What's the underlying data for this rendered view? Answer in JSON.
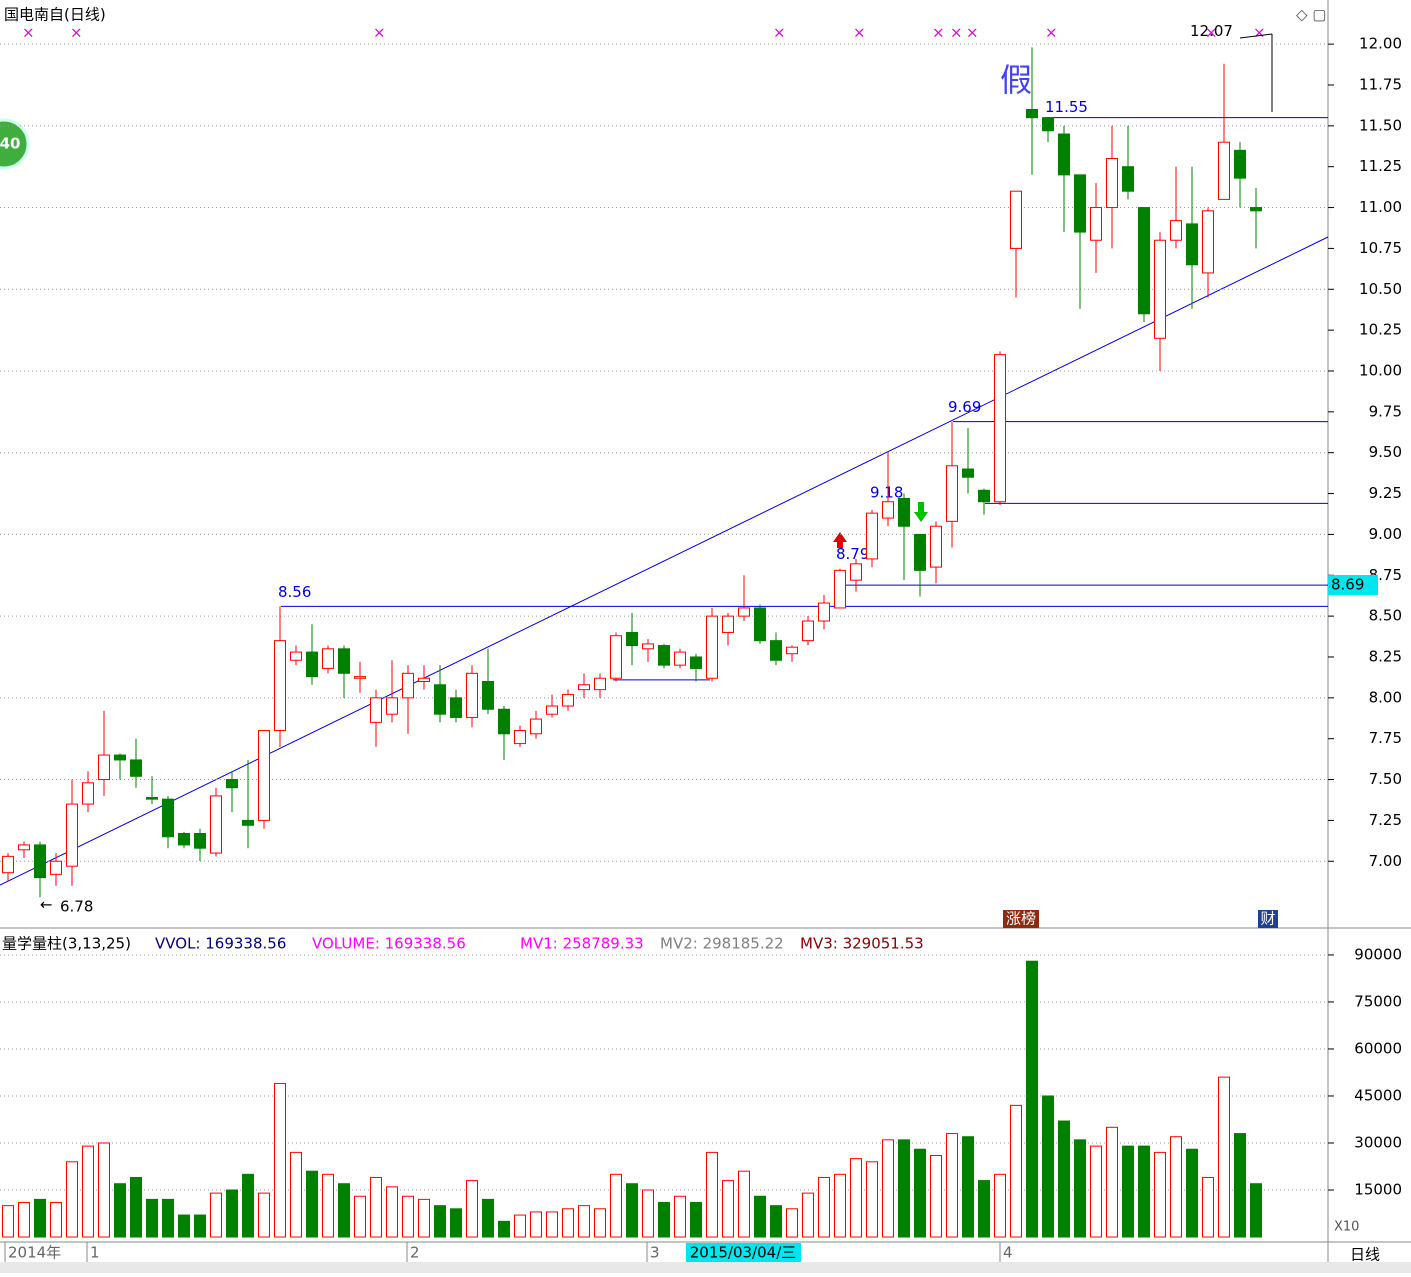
{
  "chart_data": {
    "type": "candlestick",
    "title": "国电南自(日线)",
    "open": [
      6.93,
      7.07,
      7.1,
      6.92,
      6.97,
      7.35,
      7.5,
      7.65,
      7.62,
      7.39,
      7.38,
      7.17,
      7.17,
      7.05,
      7.5,
      7.25,
      7.25,
      7.8,
      8.23,
      8.28,
      8.18,
      8.3,
      8.12,
      7.85,
      7.9,
      8.0,
      8.1,
      8.08,
      8.0,
      7.88,
      8.1,
      7.93,
      7.72,
      7.78,
      7.9,
      7.95,
      8.05,
      8.05,
      8.12,
      8.4,
      8.3,
      8.32,
      8.2,
      8.25,
      8.12,
      8.4,
      8.5,
      8.55,
      8.35,
      8.27,
      8.35,
      8.47,
      8.55,
      8.72,
      8.85,
      9.1,
      9.22,
      9.0,
      8.8,
      9.08,
      9.4,
      9.27,
      9.2,
      10.75,
      11.6,
      11.55,
      11.45,
      11.2,
      10.8,
      11.0,
      11.25,
      11.0,
      10.2,
      10.8,
      10.9,
      10.6,
      11.05,
      11.35,
      11.0
    ],
    "high": [
      7.05,
      7.12,
      7.12,
      7.05,
      7.5,
      7.55,
      7.92,
      7.66,
      7.75,
      7.52,
      7.4,
      7.18,
      7.2,
      7.45,
      7.55,
      7.62,
      7.8,
      8.56,
      8.32,
      8.45,
      8.32,
      8.32,
      8.22,
      8.05,
      8.23,
      8.2,
      8.2,
      8.2,
      8.05,
      8.2,
      8.3,
      7.95,
      7.83,
      7.92,
      8.02,
      8.05,
      8.15,
      8.15,
      8.4,
      8.52,
      8.36,
      8.33,
      8.3,
      8.27,
      8.55,
      8.52,
      8.75,
      8.57,
      8.4,
      8.32,
      8.5,
      8.63,
      8.79,
      8.85,
      9.15,
      9.5,
      9.25,
      9.0,
      9.08,
      9.69,
      9.65,
      9.28,
      10.12,
      11.1,
      11.98,
      11.55,
      11.5,
      11.2,
      11.15,
      11.5,
      11.5,
      11.0,
      10.85,
      11.25,
      11.25,
      11.0,
      11.88,
      11.4,
      11.12
    ],
    "low": [
      6.88,
      7.02,
      6.78,
      6.85,
      6.85,
      7.3,
      7.4,
      7.5,
      7.45,
      7.35,
      7.08,
      7.08,
      7.0,
      7.03,
      7.3,
      7.08,
      7.2,
      7.7,
      8.2,
      8.08,
      8.15,
      8.0,
      8.03,
      7.7,
      7.85,
      7.78,
      8.05,
      7.85,
      7.85,
      7.82,
      7.9,
      7.62,
      7.7,
      7.75,
      7.88,
      7.92,
      8.0,
      8.0,
      8.1,
      8.2,
      8.22,
      8.18,
      8.18,
      8.1,
      8.1,
      8.32,
      8.47,
      8.33,
      8.2,
      8.22,
      8.32,
      8.42,
      8.55,
      8.65,
      8.8,
      9.05,
      8.72,
      8.62,
      8.7,
      8.92,
      9.25,
      9.12,
      9.18,
      10.45,
      11.2,
      11.4,
      10.85,
      10.38,
      10.6,
      10.75,
      11.05,
      10.3,
      10.0,
      10.75,
      10.38,
      10.45,
      11.05,
      11.0,
      10.75
    ],
    "close": [
      7.03,
      7.1,
      6.9,
      7.0,
      7.35,
      7.48,
      7.65,
      7.62,
      7.52,
      7.38,
      7.15,
      7.1,
      7.08,
      7.4,
      7.45,
      7.22,
      7.8,
      8.35,
      8.28,
      8.13,
      8.3,
      8.15,
      8.13,
      8.0,
      8.0,
      8.15,
      8.12,
      7.9,
      7.88,
      8.15,
      7.93,
      7.78,
      7.8,
      7.87,
      7.95,
      8.02,
      8.08,
      8.12,
      8.38,
      8.32,
      8.33,
      8.2,
      8.28,
      8.18,
      8.5,
      8.5,
      8.55,
      8.35,
      8.23,
      8.31,
      8.47,
      8.58,
      8.78,
      8.82,
      9.13,
      9.2,
      9.05,
      8.78,
      9.05,
      9.42,
      9.35,
      9.2,
      10.1,
      11.1,
      11.55,
      11.47,
      11.2,
      10.85,
      11.0,
      11.3,
      11.1,
      10.35,
      10.8,
      10.92,
      10.65,
      10.98,
      11.4,
      11.18,
      10.98
    ],
    "volume": [
      10000,
      11000,
      12000,
      11000,
      24000,
      29000,
      30000,
      17000,
      19000,
      12000,
      12000,
      7000,
      7000,
      14000,
      15000,
      20000,
      14000,
      49000,
      27000,
      21000,
      20000,
      17000,
      13000,
      19000,
      16000,
      13000,
      12000,
      10000,
      9000,
      18000,
      12000,
      5000,
      7000,
      8000,
      8000,
      9000,
      10000,
      9000,
      20000,
      17000,
      15000,
      11000,
      13000,
      11000,
      27000,
      18000,
      21000,
      13000,
      10000,
      9000,
      14000,
      19000,
      20000,
      25000,
      24000,
      31000,
      31000,
      28000,
      26000,
      33000,
      32000,
      18000,
      20000,
      42000,
      88000,
      45000,
      37000,
      31000,
      29000,
      35000,
      29000,
      29000,
      27000,
      32000,
      28000,
      19000,
      51000,
      33000,
      17000
    ],
    "up_color": "#ff0000",
    "down_color": "#008000",
    "ylim": [
      6.61,
      12.27
    ],
    "yticks": [
      {
        "value": 7,
        "label": "7.00"
      },
      {
        "value": 7.25,
        "label": "7.25"
      },
      {
        "value": 7.5,
        "label": "7.50"
      },
      {
        "value": 7.75,
        "label": "7.75"
      },
      {
        "value": 8,
        "label": "8.00"
      },
      {
        "value": 8.25,
        "label": "8.25"
      },
      {
        "value": 8.5,
        "label": "8.50"
      },
      {
        "value": 8.75,
        "label": "8.75"
      },
      {
        "value": 9,
        "label": "9.00"
      },
      {
        "value": 9.25,
        "label": "9.25"
      },
      {
        "value": 9.5,
        "label": "9.50"
      },
      {
        "value": 9.75,
        "label": "9.75"
      },
      {
        "value": 10,
        "label": "10.00"
      },
      {
        "value": 10.25,
        "label": "10.25"
      },
      {
        "value": 10.5,
        "label": "10.50"
      },
      {
        "value": 10.75,
        "label": "10.75"
      },
      {
        "value": 11,
        "label": "11.00"
      },
      {
        "value": 11.25,
        "label": "11.25"
      },
      {
        "value": 11.5,
        "label": "11.50"
      },
      {
        "value": 11.75,
        "label": "11.75"
      },
      {
        "value": 12,
        "label": "12.00"
      }
    ],
    "y2lim": [
      0,
      97000
    ],
    "y2ticks": [
      15000,
      30000,
      45000,
      60000,
      75000,
      90000
    ],
    "levels": [
      11.55,
      9.69,
      9.19,
      8.69,
      8.56,
      8.11
    ],
    "price_labels": [
      11.55,
      9.69,
      9.18,
      8.79,
      8.56,
      6.78,
      12.07
    ],
    "x_labels": [
      "2014年",
      "1",
      "2",
      "3",
      "4"
    ],
    "cursor_date": "2015/03/04/三",
    "indicator": {
      "name": "量学量柱(3,13,25)",
      "items": [
        "VVOL: 169338.56",
        "VOLUME: 169338.56",
        "MV1: 258789.33",
        "MV2: 298185.22",
        "MV3: 329051.53"
      ]
    },
    "notes": {
      "fake": "假",
      "up_list": "涨榜",
      "finance": "财",
      "zoom": "X10",
      "period": "日线",
      "badge": "40"
    }
  }
}
